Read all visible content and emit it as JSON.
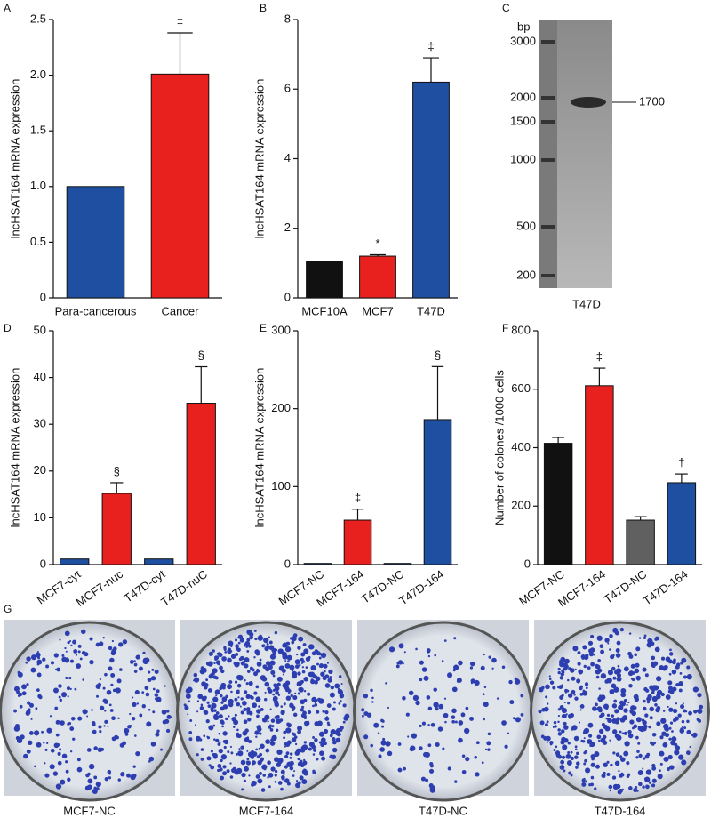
{
  "chart_data": [
    {
      "type": "bar",
      "panel": "A",
      "ylabel": "lncHSAT164 mRNA expression",
      "categories": [
        "Para-cancerous",
        "Cancer"
      ],
      "values": [
        1.0,
        2.01
      ],
      "errors": [
        null,
        0.37
      ],
      "colors": [
        "#1f4fa0",
        "#e8211f"
      ],
      "annotations": [
        null,
        "‡"
      ],
      "ylim": [
        0,
        2.5
      ],
      "yticks": [
        0,
        0.5,
        {
          "value": 1,
          "label": "1.0"
        },
        1.5,
        {
          "value": 2,
          "label": "2.0"
        },
        2.5
      ]
    },
    {
      "type": "bar",
      "panel": "B",
      "ylabel": "lncHSAT164 mRNA expression",
      "categories": [
        "MCF10A",
        "MCF7",
        "T47D"
      ],
      "values": [
        1.05,
        1.2,
        6.2
      ],
      "errors": [
        null,
        0.04,
        0.7
      ],
      "colors": [
        "#111111",
        "#e8211f",
        "#1f4fa0"
      ],
      "annotations": [
        null,
        "*",
        "‡"
      ],
      "ylim": [
        0,
        8
      ],
      "yticks": [
        0,
        2,
        4,
        6,
        8
      ]
    },
    {
      "type": "bar",
      "panel": "D",
      "ylabel": "lncHSAT164 mRNA expression",
      "categories": [
        "MCF7-cyt",
        "MCF7-nuc",
        "T47D-cyt",
        "T47D-nuC"
      ],
      "values": [
        1.2,
        15.2,
        1.2,
        34.5
      ],
      "errors": [
        null,
        2.3,
        null,
        7.8
      ],
      "colors": [
        "#1f4fa0",
        "#e8211f",
        "#1f4fa0",
        "#e8211f"
      ],
      "annotations": [
        null,
        "§",
        null,
        "§"
      ],
      "ylim": [
        0,
        50
      ],
      "yticks": [
        0,
        10,
        20,
        30,
        40,
        50
      ]
    },
    {
      "type": "bar",
      "panel": "E",
      "ylabel": "lncHSAT164 mRNA expression",
      "categories": [
        "MCF7-NC",
        "MCF7-164",
        "T47D-NC",
        "T47D-164"
      ],
      "values": [
        1.5,
        57,
        1.5,
        186
      ],
      "errors": [
        null,
        14,
        null,
        68
      ],
      "colors": [
        "#1f4fa0",
        "#e8211f",
        "#1f4fa0",
        "#1f4fa0"
      ],
      "annotations": [
        null,
        "‡",
        null,
        "§"
      ],
      "ylim": [
        0,
        300
      ],
      "yticks": [
        0,
        100,
        200,
        300
      ]
    },
    {
      "type": "bar",
      "panel": "F",
      "ylabel": "Number of colones /1000 cells",
      "categories": [
        "MCF7-NC",
        "MCF7-164",
        "T47D-NC",
        "T47D-164"
      ],
      "values": [
        415,
        612,
        152,
        280
      ],
      "errors": [
        20,
        60,
        12,
        30
      ],
      "colors": [
        "#111111",
        "#e8211f",
        "#606060",
        "#1f4fa0"
      ],
      "annotations": [
        null,
        "‡",
        null,
        "†"
      ],
      "ylim": [
        0,
        800
      ],
      "yticks": [
        0,
        200,
        400,
        600,
        800
      ]
    }
  ],
  "gel": {
    "panel": "C",
    "unit": "bp",
    "ladder": [
      3000,
      2000,
      1500,
      1000,
      500,
      200
    ],
    "band_label": "1700",
    "lane": "T47D"
  },
  "colony_images": {
    "panel": "G",
    "labels": [
      "MCF7-NC",
      "MCF7-164",
      "T47D-NC",
      "T47D-164"
    ]
  }
}
